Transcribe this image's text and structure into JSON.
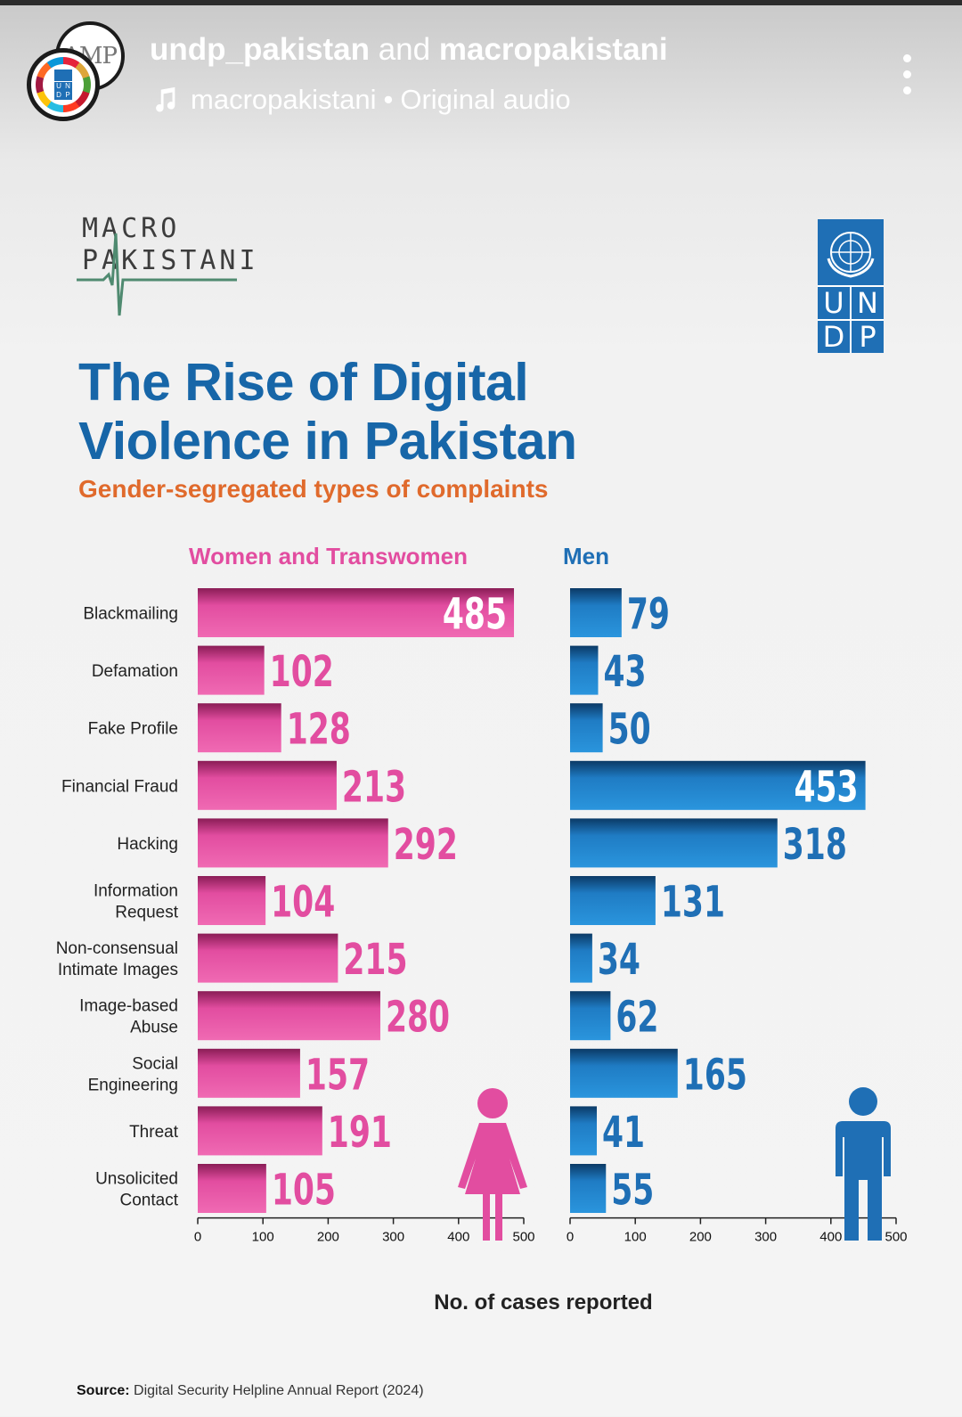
{
  "header": {
    "account_primary": "undp_pakistan",
    "and_text": "and",
    "account_secondary": "macropakistani",
    "audio_account": "macropakistani",
    "audio_separator": "•",
    "audio_name": "Original audio",
    "avatar_back_text": "AMP",
    "avatar_front_text": [
      "U",
      "N",
      "D",
      "P"
    ]
  },
  "logos": {
    "macro_line1": "MACRO",
    "macro_line2": "PAKISTANI",
    "undp_letters": [
      "U",
      "N",
      "D",
      "P"
    ]
  },
  "infographic": {
    "title_line1": "The Rise of Digital",
    "title_line2": "Violence in Pakistan",
    "subtitle": "Gender-segregated types of complaints",
    "group_women": "Women and Transwomen",
    "group_men": "Men",
    "xlabel": "No. of cases reported",
    "source_label": "Source:",
    "source_text": "Digital Security Helpline Annual Report (2024)"
  },
  "colors": {
    "women": "#e24da0",
    "men": "#1f6fb5",
    "title": "#1766a8",
    "subtitle": "#e06a2c"
  },
  "chart_data": {
    "type": "bar",
    "orientation": "horizontal",
    "categories": [
      [
        "Blackmailing"
      ],
      [
        "Defamation"
      ],
      [
        "Fake Profile"
      ],
      [
        "Financial Fraud"
      ],
      [
        "Hacking"
      ],
      [
        "Information",
        "Request"
      ],
      [
        "Non-consensual",
        "Intimate Images"
      ],
      [
        "Image-based",
        "Abuse"
      ],
      [
        "Social",
        "Engineering"
      ],
      [
        "Threat"
      ],
      [
        "Unsolicited",
        "Contact"
      ]
    ],
    "series": [
      {
        "name": "Women and Transwomen",
        "color": "#e24da0",
        "values": [
          485,
          102,
          128,
          213,
          292,
          104,
          215,
          280,
          157,
          191,
          105
        ]
      },
      {
        "name": "Men",
        "color": "#1f6fb5",
        "values": [
          79,
          43,
          50,
          453,
          318,
          131,
          34,
          62,
          165,
          41,
          55
        ]
      }
    ],
    "xlim": [
      0,
      500
    ],
    "xticks": [
      0,
      100,
      200,
      300,
      400,
      500
    ],
    "xlabel": "No. of cases reported",
    "grid": false,
    "title": "The Rise of Digital Violence in Pakistan",
    "subtitle": "Gender-segregated types of complaints"
  }
}
